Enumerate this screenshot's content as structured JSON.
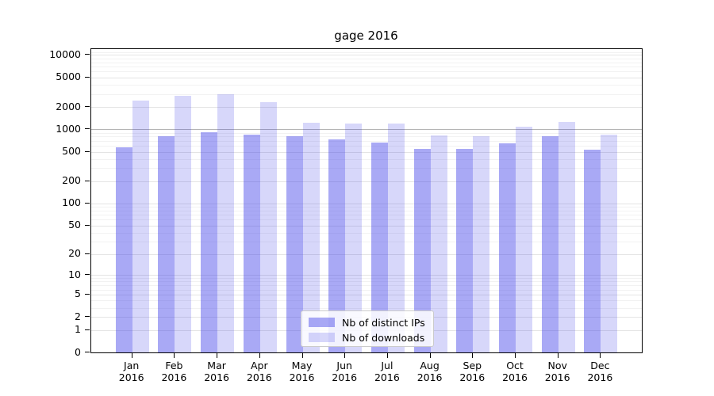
{
  "title": "gage 2016",
  "colors": {
    "bar_distinct_ips": "rgba(55,55,232,0.43)",
    "bar_downloads": "rgba(55,55,232,0.20)",
    "bar_distinct_ips_solid": "#a9a9f5",
    "bar_downloads_solid": "#d7d7fa",
    "grid_major": "#e4e4e4",
    "grid_minor": "#f2f2f2",
    "grid_emphasis": "#b5b5b5",
    "axis": "#000000",
    "background": "#ffffff"
  },
  "chart_data": {
    "type": "bar",
    "title": "gage 2016",
    "categories": [
      "Jan 2016",
      "Feb 2016",
      "Mar 2016",
      "Apr 2016",
      "May 2016",
      "Jun 2016",
      "Jul 2016",
      "Aug 2016",
      "Sep 2016",
      "Oct 2016",
      "Nov 2016",
      "Dec 2016"
    ],
    "series": [
      {
        "name": "Nb of distinct IPs",
        "color": "rgba(55,55,232,0.43)",
        "values": [
          570,
          810,
          920,
          845,
          800,
          730,
          670,
          545,
          545,
          655,
          815,
          530
        ]
      },
      {
        "name": "Nb of downloads",
        "color": "rgba(55,55,232,0.20)",
        "values": [
          2450,
          2800,
          2960,
          2320,
          1230,
          1200,
          1210,
          830,
          810,
          1090,
          1250,
          855
        ]
      }
    ],
    "xlabel": "",
    "ylabel": "",
    "y_scale": "log1p",
    "ylim": [
      0,
      12000
    ],
    "y_ticks": [
      0,
      1,
      2,
      5,
      10,
      20,
      50,
      100,
      200,
      500,
      1000,
      2000,
      5000,
      10000
    ],
    "y_minor_gridlines": [
      3,
      4,
      6,
      7,
      8,
      9,
      30,
      40,
      60,
      70,
      80,
      90,
      300,
      400,
      600,
      700,
      800,
      900,
      3000,
      4000,
      6000,
      7000,
      8000,
      9000,
      11000
    ],
    "y_emphasis_gridline": 1000,
    "grid": true,
    "legend_position": "inside-bottom-center"
  }
}
